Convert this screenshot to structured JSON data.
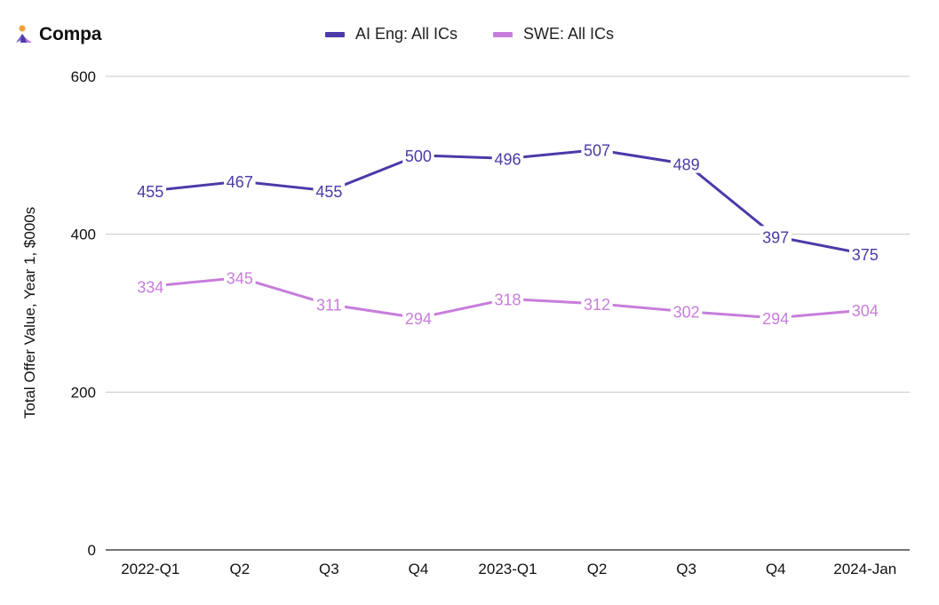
{
  "brand": {
    "name": "Compa",
    "icon": "compa-logo-icon"
  },
  "chart_data": {
    "type": "line",
    "title": "",
    "xlabel": "",
    "ylabel": "Total Offer Value, Year 1, $000s",
    "categories": [
      "2022-Q1",
      "Q2",
      "Q3",
      "Q4",
      "2023-Q1",
      "Q2",
      "Q3",
      "Q4",
      "2024-Jan"
    ],
    "ylim": [
      0,
      600
    ],
    "yticks": [
      0,
      200,
      400,
      600
    ],
    "grid": true,
    "legend_position": "top-center",
    "series": [
      {
        "name": "AI Eng: All ICs",
        "color": "#4b3aa8",
        "values": [
          455,
          467,
          455,
          500,
          496,
          507,
          489,
          397,
          375
        ]
      },
      {
        "name": "SWE: All ICs",
        "color": "#c77ddb",
        "values": [
          334,
          345,
          311,
          294,
          318,
          312,
          302,
          294,
          304
        ]
      }
    ]
  }
}
